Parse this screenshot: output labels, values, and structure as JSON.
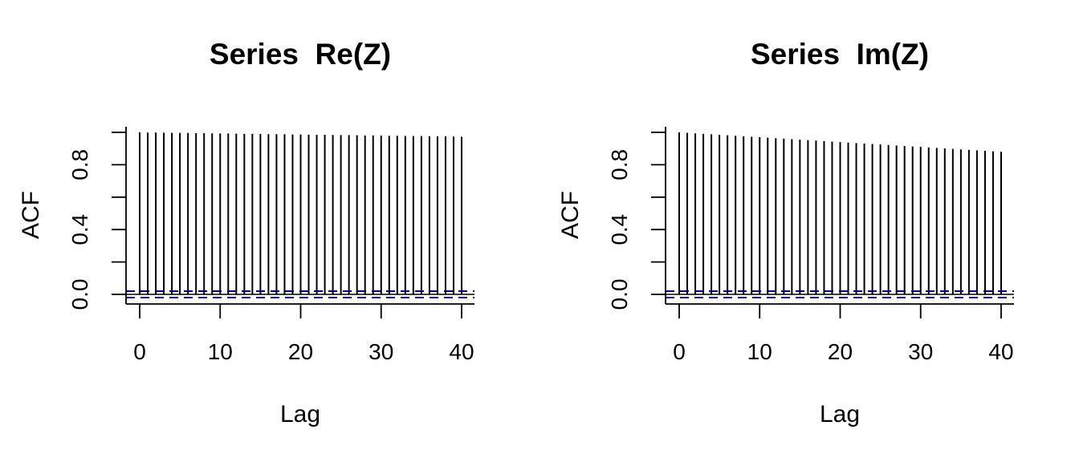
{
  "chart_data": [
    {
      "type": "bar",
      "title": "Series  Re(Z)",
      "xlabel": "Lag",
      "ylabel": "ACF",
      "x_ticks": [
        0,
        10,
        20,
        30,
        40
      ],
      "x_tick_labels": [
        "0",
        "10",
        "20",
        "30",
        "40"
      ],
      "y_ticks": [
        0.0,
        0.2,
        0.4,
        0.6,
        0.8,
        1.0
      ],
      "y_tick_labels": [
        "0.0",
        "",
        "0.4",
        "",
        "0.8",
        ""
      ],
      "xlim": [
        -1.6,
        41.6
      ],
      "ylim": [
        -0.055,
        1.0
      ],
      "ci_bound": 0.02,
      "ci_color": "#00008b",
      "lags": [
        0,
        1,
        2,
        3,
        4,
        5,
        6,
        7,
        8,
        9,
        10,
        11,
        12,
        13,
        14,
        15,
        16,
        17,
        18,
        19,
        20,
        21,
        22,
        23,
        24,
        25,
        26,
        27,
        28,
        29,
        30,
        31,
        32,
        33,
        34,
        35,
        36,
        37,
        38,
        39,
        40
      ],
      "values": [
        1.0,
        0.999,
        0.999,
        0.998,
        0.997,
        0.997,
        0.996,
        0.995,
        0.995,
        0.994,
        0.993,
        0.993,
        0.992,
        0.991,
        0.991,
        0.99,
        0.989,
        0.989,
        0.988,
        0.987,
        0.987,
        0.986,
        0.985,
        0.985,
        0.984,
        0.983,
        0.983,
        0.982,
        0.981,
        0.981,
        0.98,
        0.979,
        0.979,
        0.978,
        0.977,
        0.977,
        0.976,
        0.975,
        0.975,
        0.974,
        0.973
      ]
    },
    {
      "type": "bar",
      "title": "Series  Im(Z)",
      "xlabel": "Lag",
      "ylabel": "ACF",
      "x_ticks": [
        0,
        10,
        20,
        30,
        40
      ],
      "x_tick_labels": [
        "0",
        "10",
        "20",
        "30",
        "40"
      ],
      "y_ticks": [
        0.0,
        0.2,
        0.4,
        0.6,
        0.8,
        1.0
      ],
      "y_tick_labels": [
        "0.0",
        "",
        "0.4",
        "",
        "0.8",
        ""
      ],
      "xlim": [
        -1.6,
        41.6
      ],
      "ylim": [
        -0.055,
        1.0
      ],
      "ci_bound": 0.02,
      "ci_color": "#00008b",
      "lags": [
        0,
        1,
        2,
        3,
        4,
        5,
        6,
        7,
        8,
        9,
        10,
        11,
        12,
        13,
        14,
        15,
        16,
        17,
        18,
        19,
        20,
        21,
        22,
        23,
        24,
        25,
        26,
        27,
        28,
        29,
        30,
        31,
        32,
        33,
        34,
        35,
        36,
        37,
        38,
        39,
        40
      ],
      "values": [
        1.0,
        0.997,
        0.994,
        0.991,
        0.988,
        0.985,
        0.982,
        0.979,
        0.976,
        0.973,
        0.97,
        0.967,
        0.964,
        0.961,
        0.958,
        0.955,
        0.952,
        0.949,
        0.946,
        0.943,
        0.94,
        0.937,
        0.934,
        0.931,
        0.928,
        0.925,
        0.922,
        0.919,
        0.916,
        0.913,
        0.91,
        0.907,
        0.904,
        0.901,
        0.898,
        0.895,
        0.892,
        0.889,
        0.886,
        0.883,
        0.88
      ]
    }
  ]
}
